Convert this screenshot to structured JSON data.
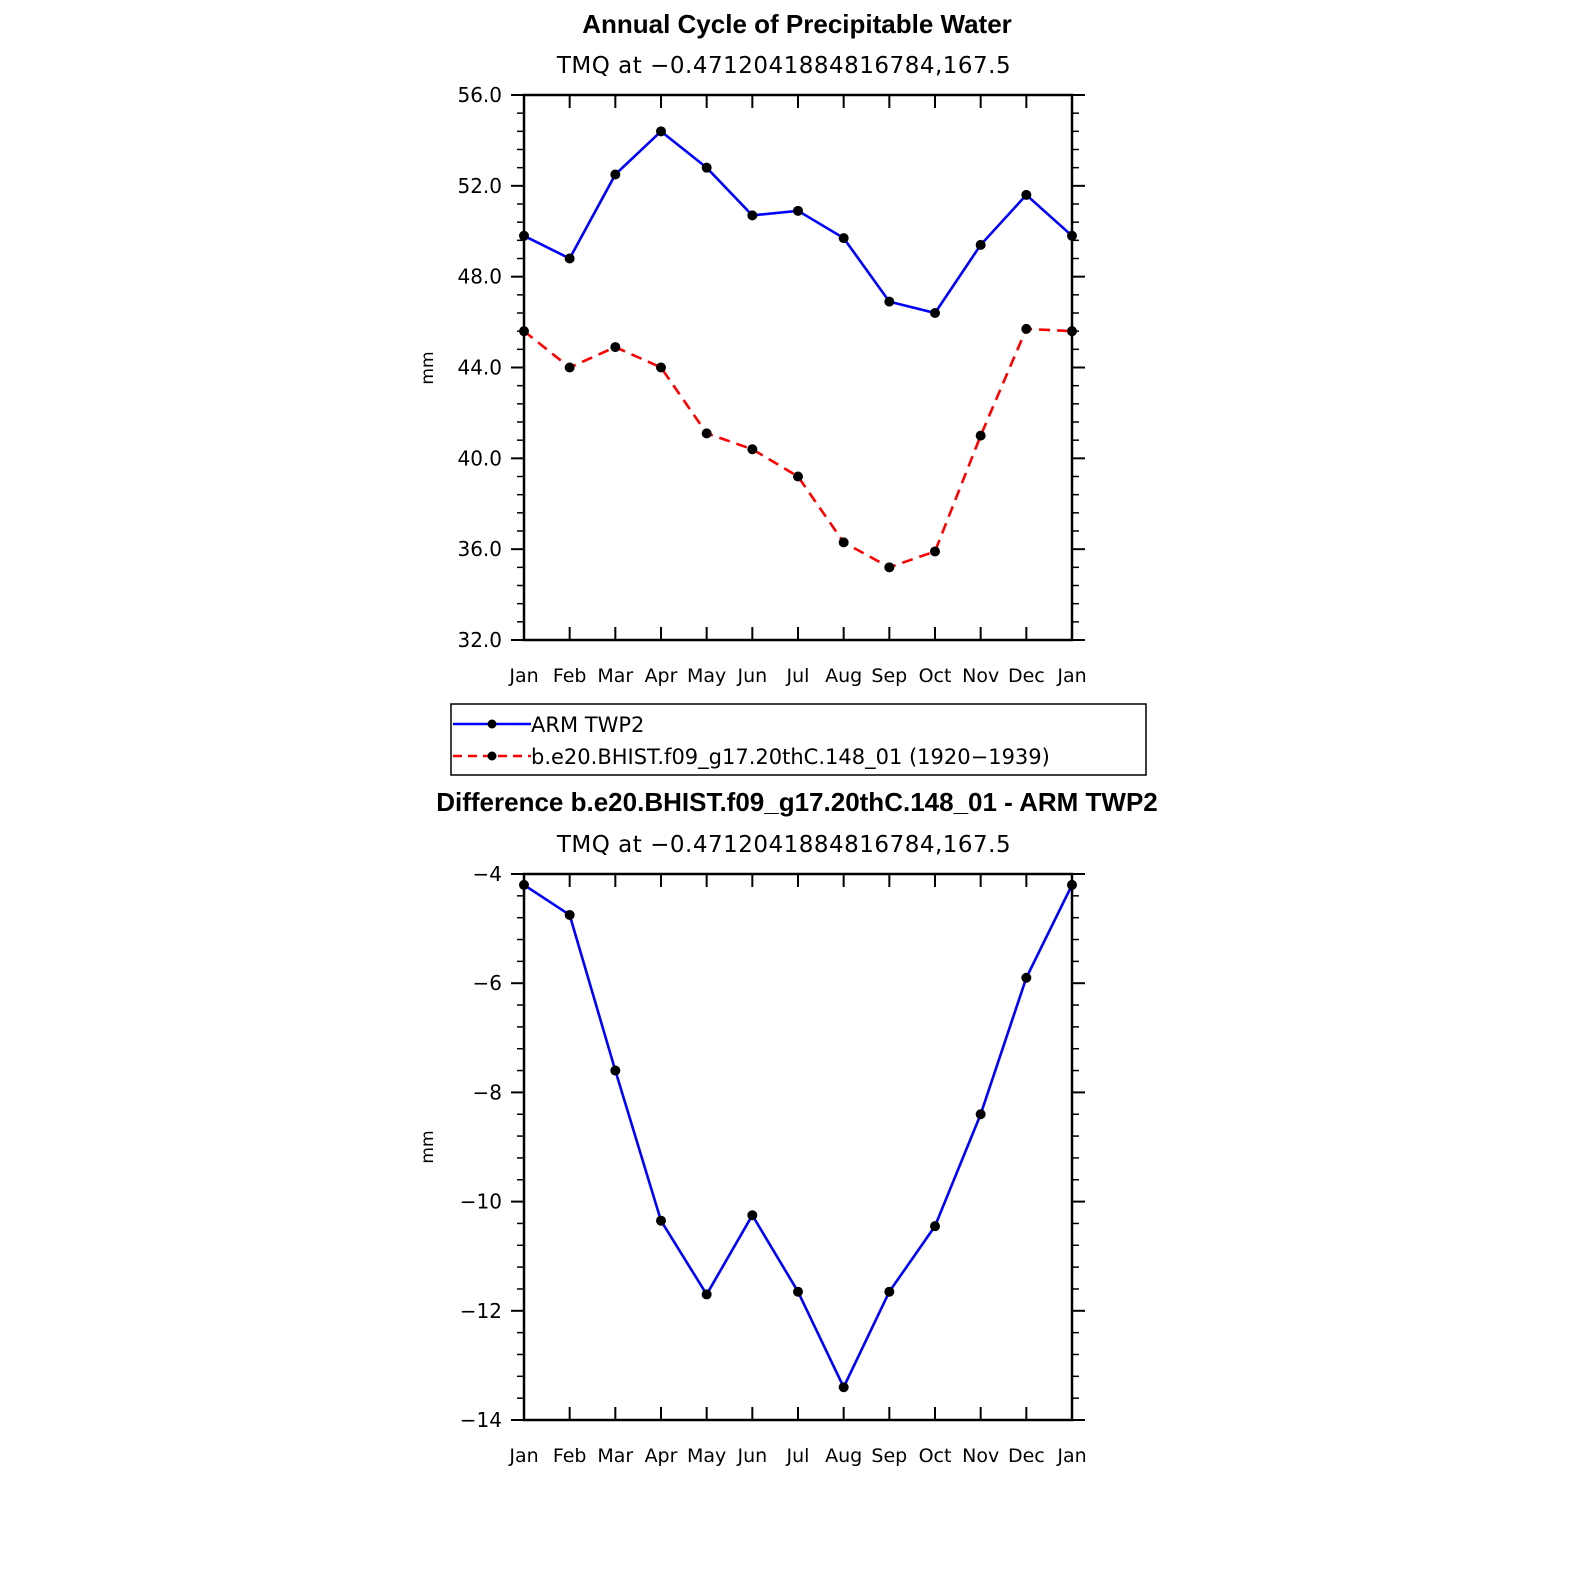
{
  "chart_data": [
    {
      "type": "line",
      "title": "Annual Cycle of Precipitable Water",
      "subtitle": "TMQ at −0.4712041884816784,167.5",
      "ylabel": "mm",
      "xlabel": "",
      "ylim": [
        32.0,
        56.0
      ],
      "yticks": [
        "56.0",
        "52.0",
        "48.0",
        "44.0",
        "40.0",
        "36.0",
        "32.0"
      ],
      "ytick_values": [
        56,
        52,
        48,
        44,
        40,
        36,
        32
      ],
      "categories": [
        "Jan",
        "Feb",
        "Mar",
        "Apr",
        "May",
        "Jun",
        "Jul",
        "Aug",
        "Sep",
        "Oct",
        "Nov",
        "Dec",
        "Jan"
      ],
      "grid": false,
      "series": [
        {
          "name": "ARM TWP2",
          "color": "#0000ff",
          "dash": "solid",
          "values": [
            49.8,
            48.8,
            52.5,
            54.4,
            52.8,
            50.7,
            50.9,
            49.7,
            46.9,
            46.4,
            49.4,
            51.6,
            49.8
          ]
        },
        {
          "name": "b.e20.BHIST.f09_g17.20thC.148_01 (1920−1939)",
          "color": "#ff0000",
          "dash": "dashed",
          "values": [
            45.6,
            44.0,
            44.9,
            44.0,
            41.1,
            40.4,
            39.2,
            36.3,
            35.2,
            35.9,
            41.0,
            45.7,
            45.6
          ]
        }
      ],
      "legend": "below"
    },
    {
      "type": "line",
      "title": "Difference b.e20.BHIST.f09_g17.20thC.148_01 - ARM TWP2",
      "subtitle": "TMQ at −0.4712041884816784,167.5",
      "ylabel": "mm",
      "xlabel": "",
      "ylim": [
        -14,
        -4
      ],
      "yticks": [
        "−4",
        "−6",
        "−8",
        "−10",
        "−12",
        "−14"
      ],
      "ytick_values": [
        -4,
        -6,
        -8,
        -10,
        -12,
        -14
      ],
      "categories": [
        "Jan",
        "Feb",
        "Mar",
        "Apr",
        "May",
        "Jun",
        "Jul",
        "Aug",
        "Sep",
        "Oct",
        "Nov",
        "Dec",
        "Jan"
      ],
      "grid": false,
      "series": [
        {
          "color": "#0000ff",
          "dash": "solid",
          "values": [
            -4.2,
            -4.75,
            -7.6,
            -10.35,
            -11.7,
            -10.25,
            -11.65,
            -13.4,
            -11.65,
            -10.45,
            -8.4,
            -5.9,
            -4.2
          ]
        }
      ]
    }
  ]
}
